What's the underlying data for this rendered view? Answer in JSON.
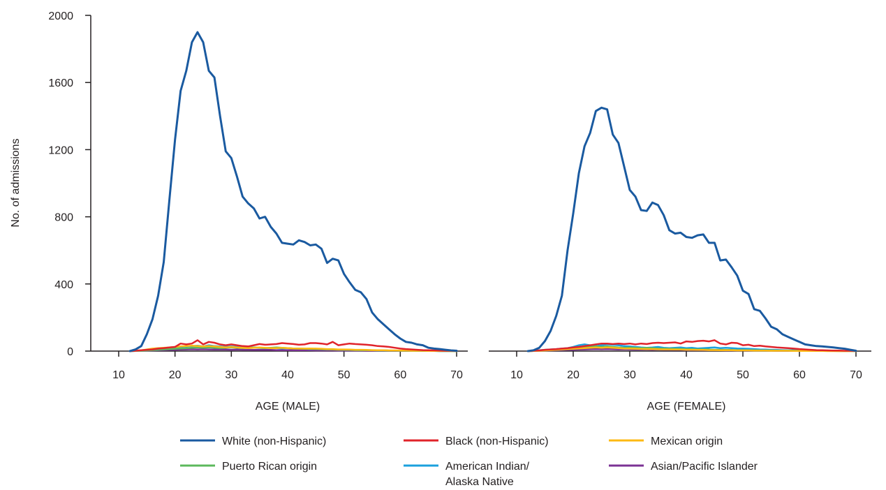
{
  "chart_data": {
    "type": "line",
    "ylabel": "No. of admissions",
    "ylim": [
      0,
      2000
    ],
    "yticks": [
      0,
      400,
      800,
      1200,
      1600,
      2000
    ],
    "xticks": [
      10,
      20,
      30,
      40,
      50,
      60,
      70
    ],
    "xlim": [
      10,
      70
    ],
    "grid": false,
    "legend_position": "bottom",
    "legend": [
      {
        "name": "White (non-Hispanic)",
        "color": "#1a5aa0"
      },
      {
        "name": "Black (non-Hispanic)",
        "color": "#e0232a"
      },
      {
        "name": "Mexican origin",
        "color": "#fdb913"
      },
      {
        "name": "Puerto Rican origin",
        "color": "#5cb85c"
      },
      {
        "name": "American Indian/",
        "name_line2": "Alaska Native",
        "color": "#1ba0dd"
      },
      {
        "name": "Asian/Pacific Islander",
        "color": "#7b3294"
      }
    ],
    "panels": [
      {
        "xlabel": "AGE (MALE)",
        "x": [
          12,
          13,
          14,
          15,
          16,
          17,
          18,
          19,
          20,
          21,
          22,
          23,
          24,
          25,
          26,
          27,
          28,
          29,
          30,
          31,
          32,
          33,
          34,
          35,
          36,
          37,
          38,
          39,
          40,
          41,
          42,
          43,
          44,
          45,
          46,
          47,
          48,
          49,
          50,
          51,
          52,
          53,
          54,
          55,
          56,
          57,
          58,
          59,
          60,
          61,
          62,
          63,
          64,
          65,
          66,
          67,
          68,
          69,
          70
        ],
        "series": [
          {
            "name": "White (non-Hispanic)",
            "color": "#1a5aa0",
            "values": [
              0,
              10,
              30,
              100,
              190,
              330,
              530,
              900,
              1260,
              1550,
              1670,
              1840,
              1900,
              1840,
              1670,
              1630,
              1400,
              1190,
              1150,
              1040,
              920,
              880,
              850,
              790,
              800,
              740,
              700,
              645,
              640,
              635,
              660,
              650,
              630,
              635,
              610,
              525,
              550,
              540,
              460,
              410,
              365,
              350,
              310,
              230,
              190,
              160,
              130,
              100,
              75,
              55,
              50,
              40,
              35,
              20,
              15,
              12,
              8,
              4,
              2
            ]
          },
          {
            "name": "Black (non-Hispanic)",
            "color": "#e0232a",
            "values": [
              0,
              2,
              5,
              8,
              10,
              15,
              18,
              22,
              25,
              45,
              40,
              45,
              65,
              40,
              55,
              50,
              40,
              35,
              40,
              35,
              30,
              28,
              35,
              42,
              38,
              40,
              42,
              48,
              45,
              42,
              38,
              40,
              48,
              48,
              45,
              40,
              55,
              35,
              40,
              45,
              42,
              40,
              38,
              35,
              30,
              28,
              25,
              20,
              15,
              12,
              10,
              8,
              6,
              5,
              4,
              3,
              2,
              2,
              1
            ]
          },
          {
            "name": "Mexican origin",
            "color": "#fdb913",
            "values": [
              0,
              2,
              5,
              10,
              15,
              18,
              20,
              22,
              25,
              28,
              30,
              32,
              30,
              28,
              30,
              28,
              25,
              22,
              25,
              22,
              20,
              18,
              20,
              22,
              20,
              18,
              18,
              20,
              18,
              16,
              15,
              15,
              16,
              15,
              14,
              12,
              12,
              10,
              10,
              9,
              8,
              8,
              7,
              6,
              5,
              5,
              4,
              4,
              3,
              3,
              2,
              2,
              2,
              1,
              1,
              1,
              1,
              0,
              0
            ]
          },
          {
            "name": "Puerto Rican origin",
            "color": "#5cb85c",
            "values": [
              0,
              1,
              2,
              4,
              6,
              8,
              10,
              12,
              14,
              16,
              18,
              20,
              22,
              20,
              22,
              20,
              18,
              20,
              22,
              20,
              18,
              20,
              22,
              20,
              18,
              20,
              22,
              20,
              18,
              16,
              15,
              14,
              13,
              12,
              11,
              10,
              9,
              8,
              8,
              7,
              6,
              6,
              5,
              5,
              4,
              4,
              3,
              3,
              2,
              2,
              2,
              1,
              1,
              1,
              1,
              0,
              0,
              0,
              0
            ]
          },
          {
            "name": "American Indian/Alaska Native",
            "color": "#1ba0dd",
            "values": [
              0,
              1,
              3,
              6,
              10,
              12,
              15,
              18,
              22,
              25,
              28,
              30,
              32,
              28,
              35,
              30,
              28,
              25,
              28,
              25,
              22,
              20,
              22,
              20,
              18,
              20,
              18,
              16,
              18,
              15,
              16,
              14,
              12,
              14,
              12,
              10,
              10,
              9,
              8,
              8,
              7,
              6,
              6,
              5,
              4,
              4,
              3,
              3,
              2,
              2,
              2,
              1,
              1,
              1,
              1,
              0,
              0,
              0,
              0
            ]
          },
          {
            "name": "Asian/Pacific Islander",
            "color": "#7b3294",
            "values": [
              0,
              1,
              2,
              3,
              4,
              5,
              6,
              7,
              8,
              9,
              10,
              11,
              10,
              11,
              10,
              9,
              10,
              9,
              8,
              9,
              8,
              8,
              7,
              8,
              7,
              7,
              6,
              6,
              6,
              5,
              5,
              5,
              5,
              4,
              4,
              4,
              4,
              3,
              3,
              3,
              3,
              3,
              2,
              2,
              2,
              2,
              2,
              2,
              1,
              1,
              1,
              1,
              1,
              1,
              1,
              1,
              1,
              1,
              0
            ]
          }
        ]
      },
      {
        "xlabel": "AGE (FEMALE)",
        "x": [
          12,
          13,
          14,
          15,
          16,
          17,
          18,
          19,
          20,
          21,
          22,
          23,
          24,
          25,
          26,
          27,
          28,
          29,
          30,
          31,
          32,
          33,
          34,
          35,
          36,
          37,
          38,
          39,
          40,
          41,
          42,
          43,
          44,
          45,
          46,
          47,
          48,
          49,
          50,
          51,
          52,
          53,
          54,
          55,
          56,
          57,
          58,
          59,
          60,
          61,
          62,
          63,
          64,
          65,
          66,
          67,
          68,
          69,
          70
        ],
        "series": [
          {
            "name": "White (non-Hispanic)",
            "color": "#1a5aa0",
            "values": [
              0,
              5,
              20,
              60,
              120,
              210,
              330,
              600,
              820,
              1060,
              1220,
              1300,
              1430,
              1450,
              1440,
              1290,
              1240,
              1100,
              960,
              920,
              840,
              835,
              885,
              870,
              810,
              720,
              700,
              705,
              680,
              675,
              690,
              695,
              645,
              645,
              540,
              545,
              500,
              450,
              360,
              340,
              250,
              240,
              195,
              145,
              130,
              100,
              85,
              70,
              55,
              40,
              35,
              30,
              28,
              25,
              22,
              18,
              14,
              8,
              2
            ]
          },
          {
            "name": "Black (non-Hispanic)",
            "color": "#e0232a",
            "values": [
              0,
              2,
              4,
              8,
              10,
              12,
              15,
              18,
              22,
              25,
              30,
              35,
              40,
              45,
              45,
              42,
              45,
              42,
              45,
              40,
              45,
              42,
              48,
              50,
              48,
              50,
              52,
              45,
              58,
              55,
              60,
              62,
              58,
              65,
              45,
              40,
              50,
              48,
              35,
              38,
              30,
              32,
              28,
              25,
              22,
              20,
              18,
              15,
              12,
              10,
              8,
              6,
              5,
              4,
              3,
              3,
              2,
              2,
              1
            ]
          },
          {
            "name": "Mexican origin",
            "color": "#fdb913",
            "values": [
              0,
              1,
              2,
              4,
              6,
              8,
              10,
              12,
              14,
              16,
              18,
              20,
              22,
              20,
              22,
              20,
              18,
              16,
              15,
              14,
              13,
              12,
              12,
              11,
              10,
              10,
              9,
              9,
              8,
              8,
              7,
              7,
              6,
              6,
              5,
              5,
              5,
              4,
              4,
              4,
              3,
              3,
              3,
              2,
              2,
              2,
              2,
              1,
              1,
              1,
              1,
              1,
              1,
              0,
              0,
              0,
              0,
              0,
              0
            ]
          },
          {
            "name": "Puerto Rican origin",
            "color": "#5cb85c",
            "values": [
              0,
              1,
              2,
              4,
              6,
              8,
              10,
              12,
              14,
              18,
              22,
              25,
              28,
              25,
              28,
              25,
              22,
              20,
              22,
              20,
              18,
              20,
              18,
              16,
              15,
              14,
              14,
              13,
              12,
              11,
              10,
              10,
              9,
              8,
              8,
              7,
              7,
              6,
              6,
              5,
              5,
              4,
              4,
              4,
              3,
              3,
              3,
              2,
              2,
              2,
              2,
              1,
              1,
              1,
              1,
              0,
              0,
              0,
              0
            ]
          },
          {
            "name": "American Indian/Alaska Native",
            "color": "#1ba0dd",
            "values": [
              0,
              2,
              5,
              8,
              10,
              12,
              15,
              18,
              25,
              35,
              40,
              35,
              30,
              35,
              40,
              38,
              35,
              30,
              28,
              25,
              22,
              20,
              22,
              25,
              20,
              18,
              20,
              22,
              18,
              20,
              16,
              18,
              20,
              22,
              18,
              20,
              18,
              16,
              15,
              14,
              12,
              10,
              9,
              8,
              7,
              6,
              5,
              5,
              4,
              3,
              3,
              2,
              2,
              2,
              1,
              1,
              1,
              1,
              1
            ]
          },
          {
            "name": "Asian/Pacific Islander",
            "color": "#7b3294",
            "values": [
              0,
              1,
              2,
              3,
              4,
              5,
              6,
              7,
              8,
              9,
              10,
              11,
              12,
              11,
              12,
              11,
              10,
              11,
              10,
              9,
              10,
              9,
              8,
              9,
              8,
              8,
              7,
              7,
              6,
              6,
              6,
              5,
              5,
              5,
              5,
              4,
              4,
              4,
              4,
              3,
              3,
              3,
              3,
              3,
              2,
              2,
              2,
              2,
              2,
              2,
              2,
              1,
              1,
              1,
              1,
              1,
              1,
              1,
              0
            ]
          }
        ]
      }
    ]
  }
}
